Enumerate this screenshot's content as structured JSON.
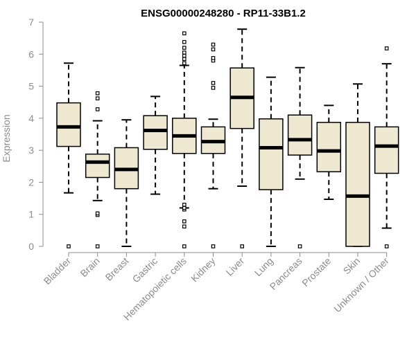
{
  "chart_data": {
    "type": "boxplot",
    "title": "ENSG00000248280 - RP11-33B1.2",
    "xlabel": "",
    "ylabel": "Expression",
    "ylim": [
      0,
      7
    ],
    "yticks": [
      0,
      1,
      2,
      3,
      4,
      5,
      6,
      7
    ],
    "box_fill": "#eee8d0",
    "box_stroke": "#000000",
    "axis_color": "#8c8c8c",
    "categories": [
      "Bladder",
      "Brain",
      "Breast",
      "Gastric",
      "Hematopoietic cells",
      "Kidney",
      "Liver",
      "Lung",
      "Pancreas",
      "Prostate",
      "Skin",
      "Unknown / Other"
    ],
    "boxes": [
      {
        "name": "Bladder",
        "whisker_low": 1.67,
        "q1": 3.12,
        "median": 3.73,
        "q3": 4.48,
        "whisker_high": 5.72,
        "outliers": [
          0.0
        ]
      },
      {
        "name": "Brain",
        "whisker_low": 1.43,
        "q1": 2.15,
        "median": 2.63,
        "q3": 2.88,
        "whisker_high": 3.92,
        "outliers": [
          0.0,
          0.98,
          1.03,
          4.28,
          4.62,
          4.78
        ]
      },
      {
        "name": "Breast",
        "whisker_low": 0.0,
        "q1": 1.8,
        "median": 2.4,
        "q3": 3.08,
        "whisker_high": 3.95,
        "outliers": []
      },
      {
        "name": "Gastric",
        "whisker_low": 1.63,
        "q1": 3.03,
        "median": 3.62,
        "q3": 4.08,
        "whisker_high": 4.68,
        "outliers": []
      },
      {
        "name": "Hematopoietic cells",
        "whisker_low": 1.2,
        "q1": 2.9,
        "median": 3.45,
        "q3": 4.0,
        "whisker_high": 5.65,
        "outliers": [
          0.0,
          0.62,
          0.78,
          1.15,
          1.2,
          1.3,
          5.72,
          5.85,
          5.95,
          6.05,
          6.2,
          6.38,
          6.65
        ]
      },
      {
        "name": "Kidney",
        "whisker_low": 1.8,
        "q1": 2.9,
        "median": 3.27,
        "q3": 3.73,
        "whisker_high": 3.97,
        "outliers": [
          0.0,
          4.95,
          5.1,
          5.8,
          5.88,
          6.15,
          6.3
        ]
      },
      {
        "name": "Liver",
        "whisker_low": 1.88,
        "q1": 3.68,
        "median": 4.65,
        "q3": 5.57,
        "whisker_high": 6.78,
        "outliers": [
          0.0
        ]
      },
      {
        "name": "Lung",
        "whisker_low": 0.0,
        "q1": 1.77,
        "median": 3.08,
        "q3": 3.98,
        "whisker_high": 5.28,
        "outliers": []
      },
      {
        "name": "Pancreas",
        "whisker_low": 2.1,
        "q1": 2.85,
        "median": 3.33,
        "q3": 4.1,
        "whisker_high": 5.58,
        "outliers": [
          0.0
        ]
      },
      {
        "name": "Prostate",
        "whisker_low": 1.47,
        "q1": 2.33,
        "median": 2.98,
        "q3": 3.87,
        "whisker_high": 4.4,
        "outliers": []
      },
      {
        "name": "Skin",
        "whisker_low": 0.0,
        "q1": 0.0,
        "median": 1.57,
        "q3": 3.87,
        "whisker_high": 5.07,
        "outliers": []
      },
      {
        "name": "Unknown / Other",
        "whisker_low": 0.57,
        "q1": 2.28,
        "median": 3.13,
        "q3": 3.73,
        "whisker_high": 5.7,
        "outliers": [
          0.0,
          6.18
        ]
      }
    ]
  }
}
